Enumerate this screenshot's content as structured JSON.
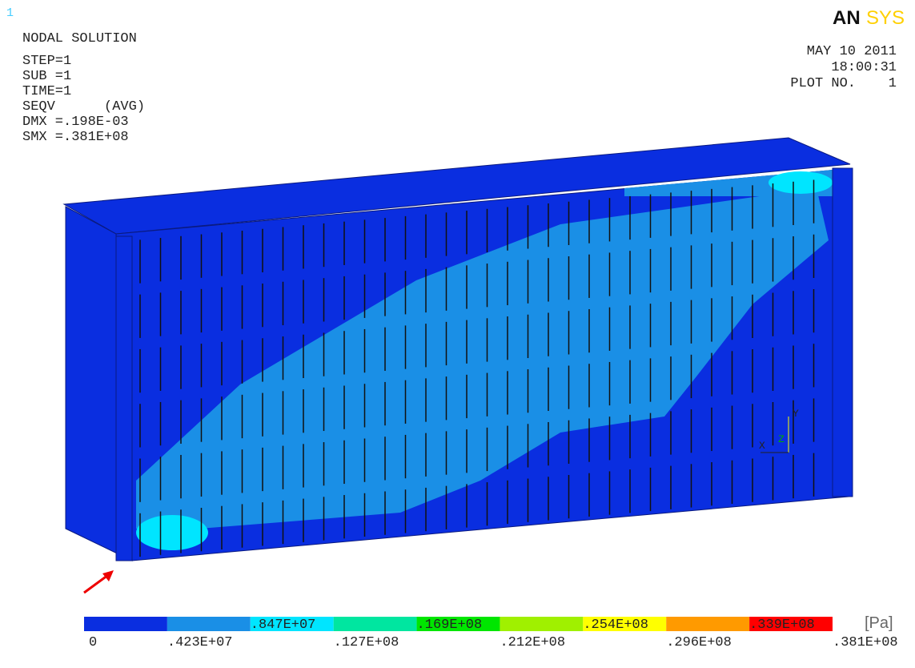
{
  "window_number": "1",
  "title": "NODAL SOLUTION",
  "info": [
    "STEP=1",
    "SUB =1",
    "TIME=1",
    "SEQV      (AVG)",
    "DMX =.198E-03",
    "SMX =.381E+08"
  ],
  "logo": [
    "AN",
    "SYS"
  ],
  "date": "MAY 10 2011",
  "time": "18:00:31",
  "plot": "PLOT NO.    1",
  "triad": [
    "Y",
    "X",
    "Z"
  ],
  "legend": {
    "colors": [
      "#0a2ee0",
      "#1a8fe6",
      "#00e5ff",
      "#00e6a0",
      "#00e600",
      "#a0f000",
      "#ffff00",
      "#ff9a00",
      "#ff0000"
    ],
    "labels": [
      "0",
      ".423E+07",
      ".847E+07",
      ".127E+08",
      ".169E+08",
      ".212E+08",
      ".254E+08",
      ".296E+08",
      ".339E+08",
      ".381E+08"
    ],
    "unit": "[Pa]"
  }
}
